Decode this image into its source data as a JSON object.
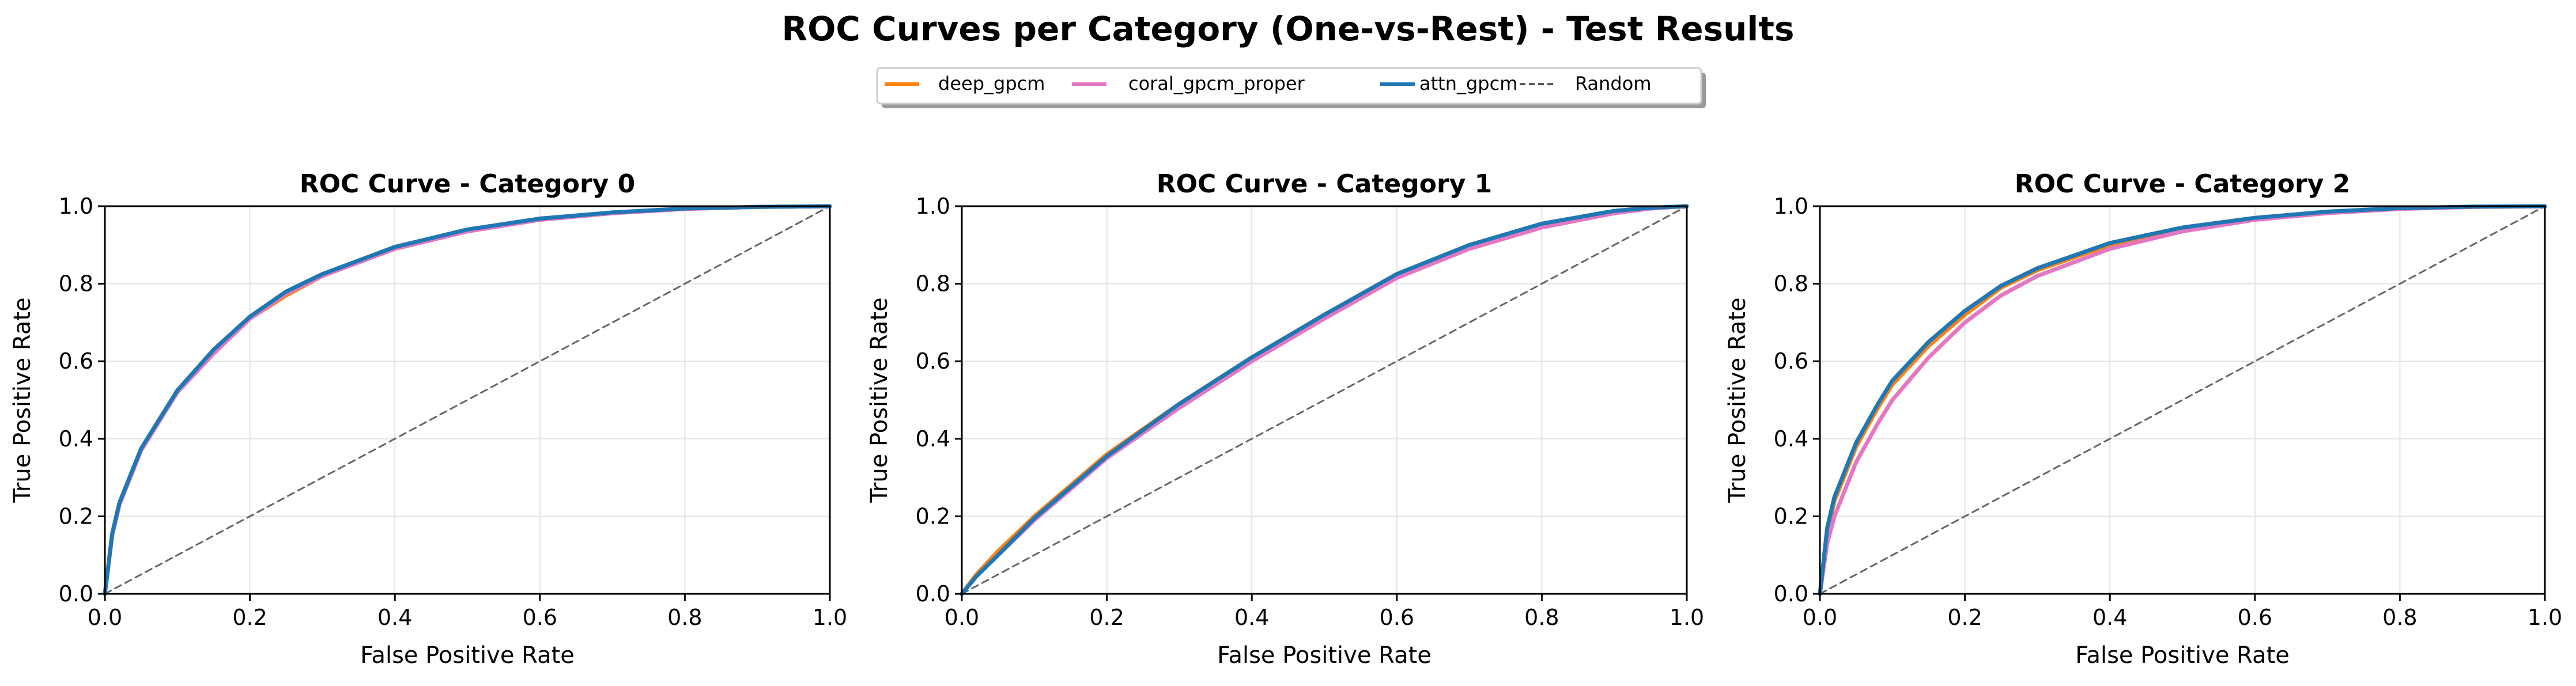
{
  "figure": {
    "title": "ROC Curves per Category (One-vs-Rest) - Test Results"
  },
  "legend": {
    "placement": "top-center",
    "entries": [
      {
        "label": "deep_gpcm",
        "color": "#ff7f0e",
        "style": "solid"
      },
      {
        "label": "coral_gpcm_proper",
        "color": "#e377c2",
        "style": "solid"
      },
      {
        "label": "attn_gpcm",
        "color": "#1f77b4",
        "style": "solid"
      },
      {
        "label": "Random",
        "color": "#333333",
        "style": "dashed"
      }
    ]
  },
  "colors": {
    "deep_gpcm": "#ff7f0e",
    "coral_gpcm_proper": "#e377c2",
    "attn_gpcm": "#1f77b4",
    "random": "#666666",
    "grid": "#e3e3e3",
    "axis": "#000000"
  },
  "chart_data": [
    {
      "type": "line",
      "title": "ROC Curve - Category 0",
      "xlabel": "False Positive Rate",
      "ylabel": "True Positive Rate",
      "xlim": [
        0,
        1
      ],
      "ylim": [
        0,
        1
      ],
      "xticks": [
        "0.0",
        "0.2",
        "0.4",
        "0.6",
        "0.8",
        "1.0"
      ],
      "yticks": [
        "0.0",
        "0.2",
        "0.4",
        "0.6",
        "0.8",
        "1.0"
      ],
      "grid": true,
      "series": [
        {
          "name": "deep_gpcm",
          "x": [
            0,
            0.01,
            0.02,
            0.05,
            0.08,
            0.1,
            0.15,
            0.2,
            0.25,
            0.3,
            0.4,
            0.5,
            0.6,
            0.7,
            0.8,
            0.9,
            1.0
          ],
          "y": [
            0,
            0.15,
            0.23,
            0.37,
            0.46,
            0.52,
            0.62,
            0.71,
            0.77,
            0.82,
            0.89,
            0.935,
            0.965,
            0.982,
            0.993,
            0.998,
            1.0
          ]
        },
        {
          "name": "coral_gpcm_proper",
          "x": [
            0,
            0.01,
            0.02,
            0.05,
            0.08,
            0.1,
            0.15,
            0.2,
            0.25,
            0.3,
            0.4,
            0.5,
            0.6,
            0.7,
            0.8,
            0.9,
            1.0
          ],
          "y": [
            0,
            0.15,
            0.23,
            0.37,
            0.46,
            0.52,
            0.62,
            0.71,
            0.775,
            0.82,
            0.89,
            0.935,
            0.965,
            0.982,
            0.993,
            0.998,
            1.0
          ]
        },
        {
          "name": "attn_gpcm",
          "x": [
            0,
            0.01,
            0.02,
            0.05,
            0.08,
            0.1,
            0.15,
            0.2,
            0.25,
            0.3,
            0.4,
            0.5,
            0.6,
            0.7,
            0.8,
            0.9,
            1.0
          ],
          "y": [
            0,
            0.155,
            0.235,
            0.375,
            0.465,
            0.525,
            0.63,
            0.715,
            0.78,
            0.825,
            0.895,
            0.94,
            0.968,
            0.984,
            0.994,
            0.998,
            1.0
          ]
        },
        {
          "name": "Random",
          "x": [
            0,
            1
          ],
          "y": [
            0,
            1
          ]
        }
      ]
    },
    {
      "type": "line",
      "title": "ROC Curve - Category 1",
      "xlabel": "False Positive Rate",
      "ylabel": "True Positive Rate",
      "xlim": [
        0,
        1
      ],
      "ylim": [
        0,
        1
      ],
      "xticks": [
        "0.0",
        "0.2",
        "0.4",
        "0.6",
        "0.8",
        "1.0"
      ],
      "yticks": [
        "0.0",
        "0.2",
        "0.4",
        "0.6",
        "0.8",
        "1.0"
      ],
      "grid": true,
      "series": [
        {
          "name": "deep_gpcm",
          "x": [
            0,
            0.02,
            0.05,
            0.1,
            0.15,
            0.2,
            0.3,
            0.4,
            0.5,
            0.6,
            0.7,
            0.8,
            0.9,
            0.95,
            1.0
          ],
          "y": [
            0,
            0.05,
            0.11,
            0.2,
            0.28,
            0.36,
            0.49,
            0.61,
            0.72,
            0.82,
            0.895,
            0.95,
            0.985,
            0.995,
            1.0
          ]
        },
        {
          "name": "coral_gpcm_proper",
          "x": [
            0,
            0.02,
            0.05,
            0.1,
            0.15,
            0.2,
            0.3,
            0.4,
            0.5,
            0.6,
            0.7,
            0.8,
            0.9,
            0.95,
            1.0
          ],
          "y": [
            0,
            0.045,
            0.1,
            0.19,
            0.27,
            0.35,
            0.48,
            0.6,
            0.71,
            0.815,
            0.89,
            0.945,
            0.982,
            0.994,
            1.0
          ]
        },
        {
          "name": "attn_gpcm",
          "x": [
            0,
            0.02,
            0.05,
            0.1,
            0.15,
            0.2,
            0.3,
            0.4,
            0.5,
            0.6,
            0.7,
            0.8,
            0.9,
            0.95,
            1.0
          ],
          "y": [
            0,
            0.045,
            0.1,
            0.195,
            0.275,
            0.355,
            0.49,
            0.61,
            0.72,
            0.825,
            0.9,
            0.955,
            0.988,
            0.996,
            1.0
          ]
        },
        {
          "name": "Random",
          "x": [
            0,
            1
          ],
          "y": [
            0,
            1
          ]
        }
      ]
    },
    {
      "type": "line",
      "title": "ROC Curve - Category 2",
      "xlabel": "False Positive Rate",
      "ylabel": "True Positive Rate",
      "xlim": [
        0,
        1
      ],
      "ylim": [
        0,
        1
      ],
      "xticks": [
        "0.0",
        "0.2",
        "0.4",
        "0.6",
        "0.8",
        "1.0"
      ],
      "yticks": [
        "0.0",
        "0.2",
        "0.4",
        "0.6",
        "0.8",
        "1.0"
      ],
      "grid": true,
      "series": [
        {
          "name": "deep_gpcm",
          "x": [
            0,
            0.01,
            0.02,
            0.05,
            0.08,
            0.1,
            0.15,
            0.2,
            0.25,
            0.3,
            0.4,
            0.5,
            0.6,
            0.7,
            0.8,
            0.9,
            1.0
          ],
          "y": [
            0,
            0.16,
            0.24,
            0.38,
            0.48,
            0.54,
            0.64,
            0.72,
            0.79,
            0.835,
            0.9,
            0.94,
            0.968,
            0.984,
            0.994,
            0.998,
            1.0
          ]
        },
        {
          "name": "coral_gpcm_proper",
          "x": [
            0,
            0.01,
            0.02,
            0.05,
            0.08,
            0.1,
            0.15,
            0.2,
            0.25,
            0.3,
            0.4,
            0.5,
            0.6,
            0.7,
            0.8,
            0.9,
            1.0
          ],
          "y": [
            0,
            0.13,
            0.2,
            0.34,
            0.44,
            0.5,
            0.61,
            0.7,
            0.77,
            0.82,
            0.89,
            0.935,
            0.965,
            0.982,
            0.993,
            0.998,
            1.0
          ]
        },
        {
          "name": "attn_gpcm",
          "x": [
            0,
            0.01,
            0.02,
            0.05,
            0.08,
            0.1,
            0.15,
            0.2,
            0.25,
            0.3,
            0.4,
            0.5,
            0.6,
            0.7,
            0.8,
            0.9,
            1.0
          ],
          "y": [
            0,
            0.17,
            0.25,
            0.39,
            0.49,
            0.55,
            0.65,
            0.73,
            0.795,
            0.84,
            0.905,
            0.945,
            0.97,
            0.986,
            0.995,
            0.999,
            1.0
          ]
        },
        {
          "name": "Random",
          "x": [
            0,
            1
          ],
          "y": [
            0,
            1
          ]
        }
      ]
    }
  ]
}
